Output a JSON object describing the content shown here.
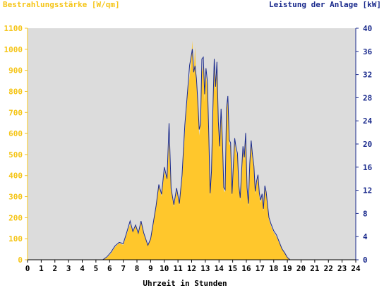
{
  "chart_data": {
    "type": "area",
    "title_left": "Bestrahlungsstärke [W/qm]",
    "title_right": "Leistung der Anlage [kW]",
    "xlabel": "Uhrzeit in Stunden",
    "x_ticks": [
      "0",
      "1",
      "2",
      "3",
      "4",
      "5",
      "6",
      "7",
      "8",
      "9",
      "10",
      "11",
      "12",
      "13",
      "14",
      "15",
      "16",
      "17",
      "18",
      "19",
      "20",
      "21",
      "22",
      "23",
      "24"
    ],
    "y_left_ticks": [
      "0",
      "100",
      "200",
      "300",
      "400",
      "500",
      "600",
      "700",
      "800",
      "900",
      "1000",
      "1100"
    ],
    "y_right_ticks": [
      "0",
      "4",
      "8",
      "12",
      "16",
      "20",
      "24",
      "28",
      "32",
      "36",
      "40"
    ],
    "xlim": [
      0,
      24
    ],
    "ylim_left": [
      0,
      1100
    ],
    "ylim_right": [
      0,
      40
    ],
    "grid": false,
    "colors": {
      "irradiance_fill": "#ffc72c",
      "power_line": "#1a2a8c",
      "plot_background": "#dcdcdc",
      "left_axis": "#f5c518",
      "right_axis": "#1a2a8c"
    },
    "series": [
      {
        "axis": "left",
        "unit": "W/qm",
        "style": "filled-area",
        "x": [
          0,
          5.5,
          5.8,
          6.1,
          6.4,
          6.7,
          7.0,
          7.2,
          7.5,
          7.7,
          7.9,
          8.1,
          8.3,
          8.5,
          8.8,
          9.0,
          9.2,
          9.4,
          9.6,
          9.8,
          10.0,
          10.2,
          10.35,
          10.5,
          10.7,
          10.9,
          11.1,
          11.3,
          11.5,
          11.7,
          11.85,
          11.95,
          12.05,
          12.15,
          12.25,
          12.35,
          12.45,
          12.55,
          12.65,
          12.75,
          12.85,
          12.95,
          13.05,
          13.15,
          13.25,
          13.35,
          13.45,
          13.55,
          13.65,
          13.75,
          13.85,
          13.95,
          14.05,
          14.15,
          14.25,
          14.35,
          14.45,
          14.55,
          14.65,
          14.75,
          14.85,
          14.95,
          15.05,
          15.15,
          15.25,
          15.35,
          15.45,
          15.55,
          15.65,
          15.75,
          15.85,
          15.95,
          16.05,
          16.15,
          16.25,
          16.35,
          16.45,
          16.55,
          16.65,
          16.75,
          16.85,
          16.95,
          17.05,
          17.15,
          17.25,
          17.35,
          17.45,
          17.55,
          17.65,
          17.8,
          18.0,
          18.2,
          18.4,
          18.6,
          18.8,
          19.0,
          19.2,
          19.5,
          24
        ],
        "values": [
          0,
          0,
          10,
          30,
          60,
          80,
          70,
          110,
          170,
          130,
          160,
          120,
          180,
          120,
          70,
          100,
          180,
          250,
          350,
          300,
          420,
          380,
          560,
          330,
          250,
          330,
          260,
          380,
          600,
          780,
          870,
          930,
          1040,
          880,
          1010,
          830,
          740,
          590,
          640,
          890,
          920,
          750,
          880,
          820,
          590,
          300,
          400,
          680,
          930,
          800,
          910,
          640,
          520,
          700,
          560,
          330,
          320,
          700,
          760,
          550,
          540,
          300,
          430,
          560,
          510,
          490,
          340,
          280,
          400,
          520,
          470,
          580,
          330,
          250,
          440,
          550,
          480,
          430,
          310,
          360,
          390,
          300,
          270,
          300,
          230,
          340,
          310,
          250,
          190,
          160,
          130,
          110,
          80,
          50,
          30,
          10,
          0,
          0,
          0
        ]
      },
      {
        "axis": "right",
        "unit": "kW",
        "style": "line",
        "x": [
          0,
          5.5,
          5.8,
          6.1,
          6.4,
          6.7,
          7.0,
          7.2,
          7.5,
          7.7,
          7.9,
          8.1,
          8.3,
          8.5,
          8.8,
          9.0,
          9.2,
          9.4,
          9.6,
          9.8,
          10.0,
          10.2,
          10.35,
          10.5,
          10.7,
          10.9,
          11.1,
          11.3,
          11.5,
          11.7,
          11.85,
          11.95,
          12.05,
          12.15,
          12.25,
          12.35,
          12.45,
          12.55,
          12.65,
          12.75,
          12.85,
          12.95,
          13.05,
          13.15,
          13.25,
          13.35,
          13.45,
          13.55,
          13.65,
          13.75,
          13.85,
          13.95,
          14.05,
          14.15,
          14.25,
          14.35,
          14.45,
          14.55,
          14.65,
          14.75,
          14.85,
          14.95,
          15.05,
          15.15,
          15.25,
          15.35,
          15.45,
          15.55,
          15.65,
          15.75,
          15.85,
          15.95,
          16.05,
          16.15,
          16.25,
          16.35,
          16.45,
          16.55,
          16.65,
          16.75,
          16.85,
          16.95,
          17.05,
          17.15,
          17.25,
          17.35,
          17.45,
          17.55,
          17.65,
          17.8,
          18.0,
          18.2,
          18.4,
          18.6,
          18.8,
          19.0,
          19.2,
          19.5,
          24
        ],
        "values": [
          0,
          0,
          0.5,
          1.3,
          2.4,
          3.0,
          2.8,
          4.3,
          6.7,
          4.9,
          6.0,
          4.6,
          6.7,
          4.6,
          2.5,
          3.6,
          6.5,
          9.3,
          13.0,
          11.3,
          16.0,
          14.0,
          23.6,
          12.3,
          9.5,
          12.4,
          9.7,
          14.6,
          23.2,
          29.1,
          33.6,
          34.9,
          36.4,
          32.4,
          33.5,
          31.3,
          27.4,
          22.5,
          23.4,
          34.7,
          35.0,
          28.6,
          33.1,
          30.8,
          22.1,
          11.5,
          15.3,
          25.6,
          34.7,
          29.9,
          34.2,
          23.9,
          19.6,
          26.1,
          20.7,
          12.5,
          12.1,
          26.2,
          28.3,
          20.7,
          20.2,
          11.4,
          16.3,
          21.0,
          19.3,
          18.4,
          12.9,
          10.7,
          15.2,
          19.6,
          17.7,
          21.9,
          12.5,
          9.7,
          16.5,
          20.6,
          18.1,
          16.2,
          11.8,
          13.6,
          14.7,
          11.5,
          10.3,
          11.4,
          8.8,
          12.8,
          11.7,
          9.5,
          7.3,
          6.2,
          5.0,
          4.3,
          3.1,
          1.9,
          1.2,
          0.4,
          0,
          0,
          0
        ]
      }
    ]
  }
}
